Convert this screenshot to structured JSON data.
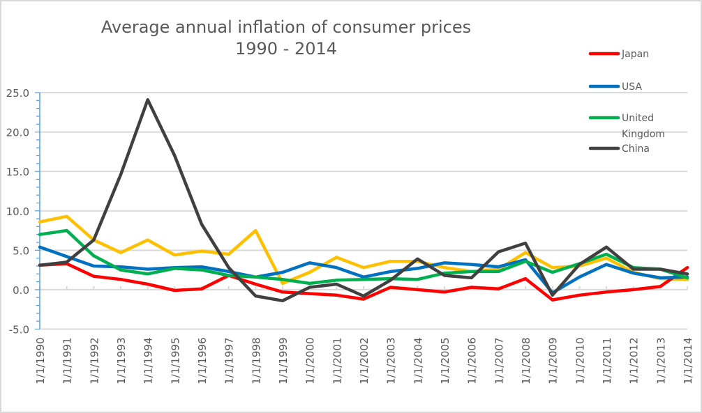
{
  "chart_data": {
    "type": "line",
    "title": "Average annual inflation of consumer prices",
    "subtitle": "1990 - 2014",
    "xlabel": "",
    "ylabel": "",
    "ylim": [
      -5,
      25
    ],
    "y_major_step": 5,
    "y_minor_step": 1,
    "y_ticks": [
      "-5.0",
      "0.0",
      "5.0",
      "10.0",
      "15.0",
      "20.0",
      "25.0"
    ],
    "y_tick_values": [
      -5,
      0,
      5,
      10,
      15,
      20,
      25
    ],
    "grid": true,
    "legend_position": "top-right",
    "categories": [
      "1/1/1990",
      "1/1/1991",
      "1/1/1992",
      "1/1/1993",
      "1/1/1994",
      "1/1/1995",
      "1/1/1996",
      "1/1/1997",
      "1/1/1998",
      "1/1/1999",
      "1/1/2000",
      "1/1/2001",
      "1/1/2002",
      "1/1/2003",
      "1/1/2004",
      "1/1/2005",
      "1/1/2006",
      "1/1/2007",
      "1/1/2008",
      "1/1/2009",
      "1/1/2010",
      "1/1/2011",
      "1/1/2012",
      "1/1/2013",
      "1/1/2014"
    ],
    "series": [
      {
        "name": "Japan",
        "color": "#ff0000",
        "in_legend": true,
        "values": [
          3.1,
          3.3,
          1.7,
          1.3,
          0.7,
          -0.1,
          0.1,
          1.8,
          0.7,
          -0.3,
          -0.5,
          -0.7,
          -1.2,
          0.3,
          0.0,
          -0.3,
          0.3,
          0.1,
          1.4,
          -1.3,
          -0.7,
          -0.3,
          0.0,
          0.4,
          2.8
        ]
      },
      {
        "name": "USA",
        "color": "#0070c0",
        "in_legend": true,
        "values": [
          5.4,
          4.2,
          3.0,
          2.9,
          2.6,
          2.8,
          2.9,
          2.3,
          1.6,
          2.2,
          3.4,
          2.8,
          1.6,
          2.3,
          2.7,
          3.4,
          3.2,
          2.9,
          3.8,
          -0.4,
          1.6,
          3.2,
          2.1,
          1.5,
          1.6
        ]
      },
      {
        "name": "United Kingdom",
        "color": "#00b050",
        "in_legend": true,
        "values": [
          7.0,
          7.5,
          4.3,
          2.5,
          2.0,
          2.7,
          2.5,
          1.8,
          1.6,
          1.3,
          0.8,
          1.2,
          1.3,
          1.4,
          1.3,
          2.1,
          2.3,
          2.3,
          3.6,
          2.2,
          3.3,
          4.5,
          2.8,
          2.6,
          1.5
        ]
      },
      {
        "name": "China",
        "color": "#404040",
        "in_legend": true,
        "values": [
          3.1,
          3.5,
          6.3,
          14.6,
          24.1,
          17.0,
          8.3,
          2.8,
          -0.8,
          -1.4,
          0.3,
          0.7,
          -0.8,
          1.2,
          3.9,
          1.8,
          1.5,
          4.8,
          5.9,
          -0.7,
          3.2,
          5.4,
          2.6,
          2.6,
          2.0
        ]
      },
      {
        "name": "",
        "color": "#ffc000",
        "in_legend": false,
        "values": [
          8.6,
          9.3,
          6.3,
          4.7,
          6.3,
          4.4,
          4.9,
          4.5,
          7.5,
          0.8,
          2.2,
          4.1,
          2.8,
          3.6,
          3.6,
          2.8,
          2.3,
          2.6,
          4.7,
          2.8,
          3.0,
          4.0,
          2.2,
          1.4,
          1.3
        ]
      }
    ],
    "legend": [
      {
        "label": "Japan",
        "color": "#ff0000"
      },
      {
        "label": "USA",
        "color": "#0070c0"
      },
      {
        "label": "United Kingdom",
        "label_lines": [
          "United",
          "Kingdom"
        ],
        "color": "#00b050"
      },
      {
        "label": "China",
        "color": "#404040"
      }
    ]
  }
}
